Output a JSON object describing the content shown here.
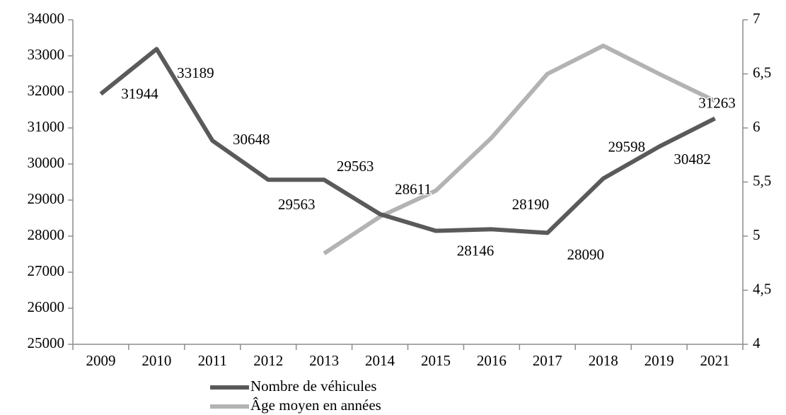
{
  "chart_data": {
    "type": "line",
    "categories": [
      "2009",
      "2010",
      "2011",
      "2012",
      "2013",
      "2014",
      "2015",
      "2016",
      "2017",
      "2018",
      "2019",
      "2021"
    ],
    "series": [
      {
        "name": "Nombre de véhicules",
        "color": "#5a5a5a",
        "values": [
          31944,
          33189,
          30648,
          29563,
          29563,
          28611,
          28146,
          28190,
          28090,
          29598,
          30482,
          31263
        ]
      },
      {
        "name": "Âge moyen en années",
        "color": "#b3b3b3",
        "axis": "y2",
        "values": [
          null,
          null,
          null,
          null,
          4.84,
          5.18,
          5.42,
          5.91,
          6.5,
          6.76,
          6.5,
          6.25
        ]
      }
    ],
    "ylim": [
      25000,
      34000
    ],
    "yticks": [
      25000,
      26000,
      27000,
      28000,
      29000,
      30000,
      31000,
      32000,
      33000,
      34000
    ],
    "y2lim": [
      4,
      7
    ],
    "y2ticks": [
      4,
      {
        "value": 4.5,
        "label": "4,5"
      },
      5,
      {
        "value": 5.5,
        "label": "5,5"
      },
      6,
      {
        "value": 6.5,
        "label": "6,5"
      },
      7
    ],
    "grid": false,
    "legend": "bottom"
  }
}
